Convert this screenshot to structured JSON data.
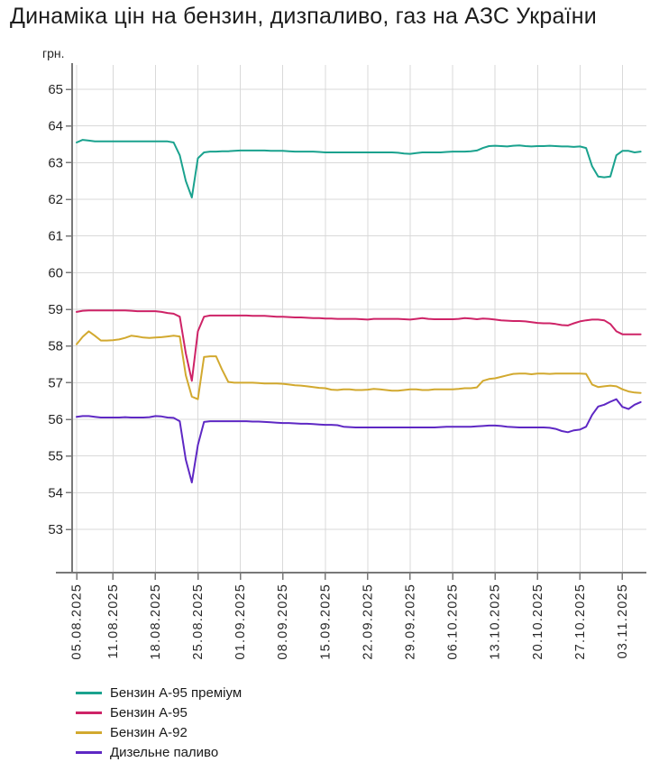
{
  "title": "Динаміка цін на бензин, дизпаливо, газ на АЗС України",
  "y_axis": {
    "unit": "грн."
  },
  "legend": {
    "items": [
      {
        "id": "a95-premium",
        "label": "Бензин А-95 преміум",
        "color": "#1aa28e"
      },
      {
        "id": "a95",
        "label": "Бензин А-95",
        "color": "#ce2367"
      },
      {
        "id": "a92",
        "label": "Бензин А-92",
        "color": "#d2a92f"
      },
      {
        "id": "diesel",
        "label": "Дизельне паливо",
        "color": "#5e28c4"
      }
    ]
  },
  "chart_data": {
    "type": "line",
    "title": "Динаміка цін на бензин, дизпаливо, газ на АЗС України",
    "ylabel": "грн.",
    "grid": true,
    "legend_position": "bottom-left",
    "x_unit": "day index, daily points starting 05.08.2025",
    "x_start_date": "05.08.2025",
    "x_end_date": "06.11.2025",
    "ylim": [
      51.8,
      65.7
    ],
    "y_ticks": [
      65,
      64,
      63,
      62,
      61,
      60,
      59,
      58,
      57,
      56,
      55,
      54,
      53
    ],
    "x_tick_days": [
      0,
      6,
      13,
      20,
      27,
      34,
      41,
      48,
      55,
      62,
      69,
      76,
      83,
      90
    ],
    "x_tick_labels": [
      "05.08.2025",
      "11.08.2025",
      "18.08.2025",
      "25.08.2025",
      "01.09.2025",
      "08.09.2025",
      "15.09.2025",
      "22.09.2025",
      "29.09.2025",
      "06.10.2025",
      "13.10.2025",
      "20.10.2025",
      "27.10.2025",
      "03.11.2025"
    ],
    "series": [
      {
        "name": "Бензин А-95 преміум",
        "color": "#1aa28e",
        "values": [
          63.55,
          63.62,
          63.6,
          63.58,
          63.58,
          63.58,
          63.58,
          63.58,
          63.58,
          63.58,
          63.58,
          63.58,
          63.58,
          63.58,
          63.58,
          63.58,
          63.55,
          63.2,
          62.5,
          62.05,
          63.12,
          63.28,
          63.3,
          63.3,
          63.31,
          63.31,
          63.32,
          63.33,
          63.33,
          63.33,
          63.33,
          63.33,
          63.32,
          63.32,
          63.32,
          63.31,
          63.3,
          63.3,
          63.3,
          63.3,
          63.29,
          63.28,
          63.28,
          63.28,
          63.28,
          63.28,
          63.28,
          63.28,
          63.28,
          63.28,
          63.28,
          63.28,
          63.28,
          63.27,
          63.25,
          63.24,
          63.26,
          63.28,
          63.28,
          63.28,
          63.28,
          63.29,
          63.3,
          63.3,
          63.3,
          63.31,
          63.33,
          63.4,
          63.45,
          63.46,
          63.45,
          63.44,
          63.46,
          63.47,
          63.45,
          63.44,
          63.45,
          63.45,
          63.46,
          63.45,
          63.44,
          63.44,
          63.43,
          63.44,
          63.4,
          62.9,
          62.62,
          62.6,
          62.62,
          63.2,
          63.32,
          63.32,
          63.28,
          63.3
        ]
      },
      {
        "name": "Бензин А-95",
        "color": "#ce2367",
        "values": [
          58.93,
          58.96,
          58.97,
          58.97,
          58.97,
          58.97,
          58.97,
          58.97,
          58.97,
          58.96,
          58.95,
          58.95,
          58.95,
          58.95,
          58.93,
          58.9,
          58.88,
          58.8,
          57.8,
          57.05,
          58.4,
          58.8,
          58.83,
          58.83,
          58.83,
          58.83,
          58.83,
          58.83,
          58.83,
          58.82,
          58.82,
          58.82,
          58.81,
          58.8,
          58.8,
          58.79,
          58.78,
          58.78,
          58.77,
          58.76,
          58.76,
          58.75,
          58.75,
          58.74,
          58.74,
          58.74,
          58.74,
          58.73,
          58.72,
          58.74,
          58.74,
          58.74,
          58.74,
          58.74,
          58.73,
          58.72,
          58.74,
          58.76,
          58.74,
          58.73,
          58.73,
          58.73,
          58.73,
          58.74,
          58.76,
          58.75,
          58.73,
          58.75,
          58.74,
          58.72,
          58.7,
          58.69,
          58.68,
          58.68,
          58.67,
          58.65,
          58.63,
          58.62,
          58.62,
          58.6,
          58.57,
          58.56,
          58.62,
          58.67,
          58.7,
          58.72,
          58.72,
          58.7,
          58.6,
          58.4,
          58.32,
          58.32,
          58.32,
          58.32
        ]
      },
      {
        "name": "Бензин А-92",
        "color": "#d2a92f",
        "values": [
          58.05,
          58.25,
          58.4,
          58.28,
          58.15,
          58.15,
          58.16,
          58.18,
          58.22,
          58.28,
          58.26,
          58.23,
          58.22,
          58.23,
          58.24,
          58.26,
          58.28,
          58.26,
          57.2,
          56.62,
          56.55,
          57.7,
          57.72,
          57.72,
          57.35,
          57.02,
          57.0,
          57.0,
          57.0,
          57.0,
          56.99,
          56.98,
          56.98,
          56.98,
          56.97,
          56.95,
          56.93,
          56.92,
          56.9,
          56.88,
          56.86,
          56.85,
          56.81,
          56.8,
          56.82,
          56.82,
          56.8,
          56.8,
          56.81,
          56.83,
          56.82,
          56.8,
          56.78,
          56.78,
          56.8,
          56.82,
          56.82,
          56.8,
          56.8,
          56.82,
          56.82,
          56.82,
          56.82,
          56.83,
          56.85,
          56.85,
          56.87,
          57.05,
          57.1,
          57.12,
          57.16,
          57.2,
          57.24,
          57.25,
          57.25,
          57.23,
          57.25,
          57.25,
          57.24,
          57.25,
          57.25,
          57.25,
          57.25,
          57.25,
          57.24,
          56.95,
          56.88,
          56.9,
          56.92,
          56.9,
          56.82,
          56.76,
          56.73,
          56.72
        ]
      },
      {
        "name": "Дизельне паливо",
        "color": "#5e28c4",
        "values": [
          56.07,
          56.09,
          56.09,
          56.07,
          56.05,
          56.05,
          56.05,
          56.05,
          56.06,
          56.05,
          56.05,
          56.05,
          56.06,
          56.09,
          56.08,
          56.05,
          56.04,
          55.95,
          54.9,
          54.28,
          55.3,
          55.93,
          55.95,
          55.95,
          55.95,
          55.95,
          55.95,
          55.95,
          55.95,
          55.94,
          55.94,
          55.93,
          55.92,
          55.91,
          55.9,
          55.9,
          55.89,
          55.88,
          55.88,
          55.87,
          55.86,
          55.85,
          55.85,
          55.84,
          55.8,
          55.79,
          55.78,
          55.78,
          55.78,
          55.78,
          55.78,
          55.78,
          55.78,
          55.78,
          55.78,
          55.78,
          55.78,
          55.78,
          55.78,
          55.78,
          55.79,
          55.8,
          55.8,
          55.8,
          55.8,
          55.8,
          55.81,
          55.82,
          55.83,
          55.83,
          55.82,
          55.8,
          55.79,
          55.78,
          55.78,
          55.78,
          55.78,
          55.78,
          55.77,
          55.74,
          55.68,
          55.65,
          55.7,
          55.72,
          55.8,
          56.12,
          56.35,
          56.4,
          56.48,
          56.55,
          56.34,
          56.28,
          56.4,
          56.47
        ]
      }
    ]
  }
}
